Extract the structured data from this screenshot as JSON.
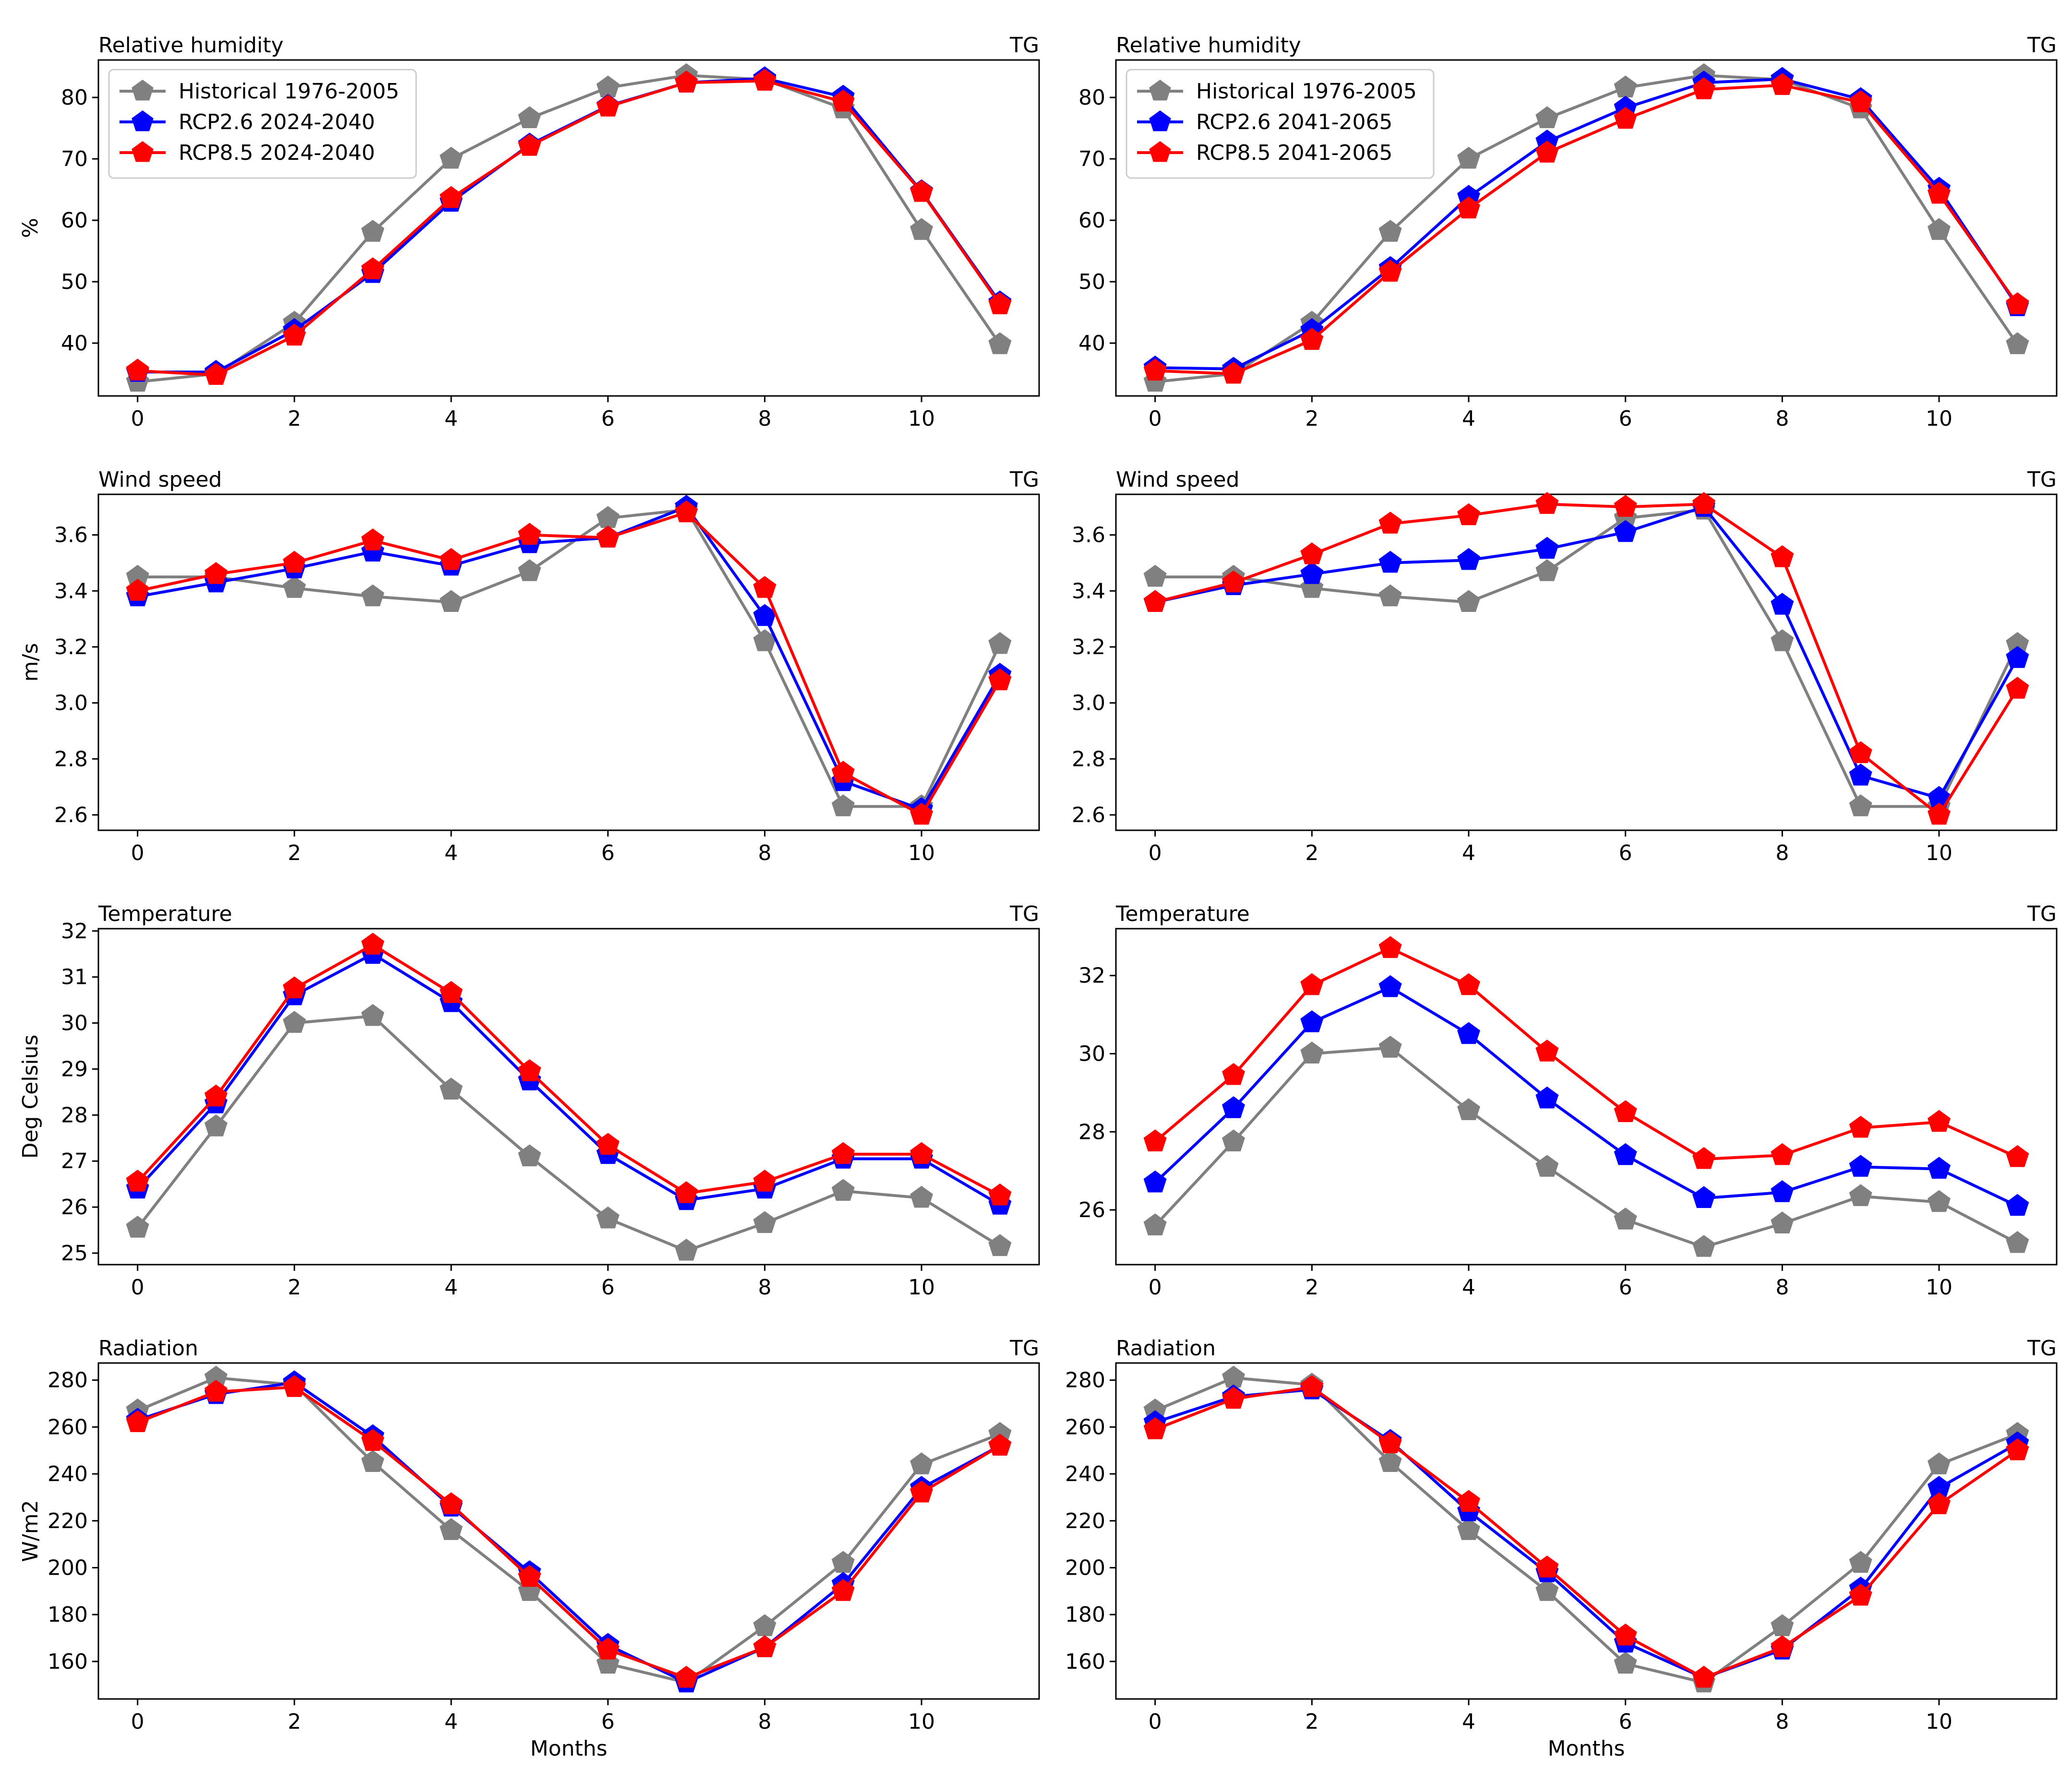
{
  "figure": {
    "xlabel": "Months",
    "station": "TG"
  },
  "legends": {
    "left": [
      "Historical 1976-2005",
      "RCP2.6 2024-2040",
      "RCP8.5 2024-2040"
    ],
    "right": [
      "Historical 1976-2005",
      "RCP2.6 2041-2065",
      "RCP8.5 2041-2065"
    ]
  },
  "colors": {
    "historical": "#808080",
    "rcp26": "#0000ff",
    "rcp85": "#ff0000"
  },
  "chart_data": [
    {
      "type": "line",
      "title": "Relative humidity",
      "corner_label": "TG",
      "xlabel": "",
      "ylabel": "%",
      "xlim": [
        -0.5,
        11.5
      ],
      "ylim": [
        31.4,
        86.1
      ],
      "xticks": [
        0,
        2,
        4,
        6,
        8,
        10
      ],
      "yticks": [
        40,
        50,
        60,
        70,
        80
      ],
      "tick_labels": [
        "40",
        "50",
        "60",
        "70",
        "80"
      ],
      "legend": "top-left",
      "x": [
        0,
        1,
        2,
        3,
        4,
        5,
        6,
        7,
        8,
        9,
        10,
        11
      ],
      "series": [
        {
          "name": "Historical 1976-2005",
          "color": "#808080",
          "values": [
            33.7,
            35.0,
            43.3,
            58.1,
            70.0,
            76.6,
            81.6,
            83.6,
            82.9,
            78.2,
            58.4,
            39.8
          ]
        },
        {
          "name": "RCP2.6 2024-2040",
          "color": "#0000ff",
          "values": [
            35.3,
            35.3,
            42.1,
            51.4,
            63.0,
            72.3,
            78.6,
            82.4,
            83.1,
            80.1,
            64.7,
            46.6
          ]
        },
        {
          "name": "RCP8.5 2024-2040",
          "color": "#ff0000",
          "values": [
            35.5,
            34.8,
            41.2,
            52.0,
            63.6,
            72.1,
            78.5,
            82.4,
            82.7,
            79.3,
            64.6,
            46.3
          ]
        }
      ]
    },
    {
      "type": "line",
      "title": "Relative humidity",
      "corner_label": "TG",
      "xlabel": "",
      "ylabel": "",
      "xlim": [
        -0.5,
        11.5
      ],
      "ylim": [
        31.4,
        86.1
      ],
      "xticks": [
        0,
        2,
        4,
        6,
        8,
        10
      ],
      "yticks": [
        40,
        50,
        60,
        70,
        80
      ],
      "tick_labels": [
        "40",
        "50",
        "60",
        "70",
        "80"
      ],
      "legend": "top-left",
      "x": [
        0,
        1,
        2,
        3,
        4,
        5,
        6,
        7,
        8,
        9,
        10,
        11
      ],
      "series": [
        {
          "name": "Historical 1976-2005",
          "color": "#808080",
          "values": [
            33.7,
            35.0,
            43.3,
            58.1,
            70.0,
            76.6,
            81.6,
            83.6,
            82.9,
            78.2,
            58.4,
            39.8
          ]
        },
        {
          "name": "RCP2.6 2041-2065",
          "color": "#0000ff",
          "values": [
            36.0,
            35.8,
            42.1,
            52.2,
            63.8,
            72.8,
            78.3,
            82.4,
            83.0,
            79.7,
            65.1,
            46.0
          ]
        },
        {
          "name": "RCP8.5 2041-2065",
          "color": "#ff0000",
          "values": [
            35.5,
            35.0,
            40.5,
            51.6,
            61.9,
            71.0,
            76.5,
            81.3,
            82.0,
            79.2,
            64.3,
            46.3
          ]
        }
      ]
    },
    {
      "type": "line",
      "title": "Wind speed",
      "corner_label": "TG",
      "xlabel": "",
      "ylabel": "m/s",
      "xlim": [
        -0.5,
        11.5
      ],
      "ylim": [
        2.545,
        3.745
      ],
      "xticks": [
        0,
        2,
        4,
        6,
        8,
        10
      ],
      "yticks": [
        2.6,
        2.8,
        3.0,
        3.2,
        3.4,
        3.6
      ],
      "tick_labels": [
        "2.6",
        "2.8",
        "3.0",
        "3.2",
        "3.4",
        "3.6"
      ],
      "legend": "none",
      "x": [
        0,
        1,
        2,
        3,
        4,
        5,
        6,
        7,
        8,
        9,
        10,
        11
      ],
      "series": [
        {
          "name": "Historical 1976-2005",
          "color": "#808080",
          "values": [
            3.45,
            3.45,
            3.41,
            3.38,
            3.36,
            3.47,
            3.66,
            3.69,
            3.22,
            2.63,
            2.63,
            3.21
          ]
        },
        {
          "name": "RCP2.6 2024-2040",
          "color": "#0000ff",
          "values": [
            3.38,
            3.43,
            3.48,
            3.54,
            3.49,
            3.57,
            3.59,
            3.7,
            3.31,
            2.72,
            2.62,
            3.1
          ]
        },
        {
          "name": "RCP8.5 2024-2040",
          "color": "#ff0000",
          "values": [
            3.4,
            3.46,
            3.5,
            3.58,
            3.51,
            3.6,
            3.59,
            3.68,
            3.41,
            2.75,
            2.6,
            3.08
          ]
        }
      ]
    },
    {
      "type": "line",
      "title": "Wind speed",
      "corner_label": "TG",
      "xlabel": "",
      "ylabel": "",
      "xlim": [
        -0.5,
        11.5
      ],
      "ylim": [
        2.545,
        3.745
      ],
      "xticks": [
        0,
        2,
        4,
        6,
        8,
        10
      ],
      "yticks": [
        2.6,
        2.8,
        3.0,
        3.2,
        3.4,
        3.6
      ],
      "tick_labels": [
        "2.6",
        "2.8",
        "3.0",
        "3.2",
        "3.4",
        "3.6"
      ],
      "legend": "none",
      "x": [
        0,
        1,
        2,
        3,
        4,
        5,
        6,
        7,
        8,
        9,
        10,
        11
      ],
      "series": [
        {
          "name": "Historical 1976-2005",
          "color": "#808080",
          "values": [
            3.45,
            3.45,
            3.41,
            3.38,
            3.36,
            3.47,
            3.66,
            3.69,
            3.22,
            2.63,
            2.63,
            3.21
          ]
        },
        {
          "name": "RCP2.6 2041-2065",
          "color": "#0000ff",
          "values": [
            3.36,
            3.42,
            3.46,
            3.5,
            3.51,
            3.55,
            3.61,
            3.7,
            3.35,
            2.74,
            2.66,
            3.16
          ]
        },
        {
          "name": "RCP8.5 2041-2065",
          "color": "#ff0000",
          "values": [
            3.36,
            3.43,
            3.53,
            3.64,
            3.67,
            3.71,
            3.7,
            3.71,
            3.52,
            2.82,
            2.6,
            3.05
          ]
        }
      ]
    },
    {
      "type": "line",
      "title": "Temperature",
      "corner_label": "TG",
      "xlabel": "",
      "ylabel": "Deg Celsius",
      "xlim": [
        -0.5,
        11.5
      ],
      "ylim": [
        24.75,
        32.05
      ],
      "xticks": [
        0,
        2,
        4,
        6,
        8,
        10
      ],
      "yticks": [
        25,
        26,
        27,
        28,
        29,
        30,
        31,
        32
      ],
      "tick_labels": [
        "25",
        "26",
        "27",
        "28",
        "29",
        "30",
        "31",
        "32"
      ],
      "legend": "none",
      "x": [
        0,
        1,
        2,
        3,
        4,
        5,
        6,
        7,
        8,
        9,
        10,
        11
      ],
      "series": [
        {
          "name": "Historical 1976-2005",
          "color": "#808080",
          "values": [
            25.55,
            27.75,
            30.0,
            30.15,
            28.55,
            27.1,
            25.75,
            25.05,
            25.65,
            26.35,
            26.2,
            25.15
          ]
        },
        {
          "name": "RCP2.6 2024-2040",
          "color": "#0000ff",
          "values": [
            26.4,
            28.25,
            30.6,
            31.5,
            30.45,
            28.75,
            27.15,
            26.15,
            26.4,
            27.05,
            27.05,
            26.05
          ]
        },
        {
          "name": "RCP8.5 2024-2040",
          "color": "#ff0000",
          "values": [
            26.55,
            28.4,
            30.75,
            31.7,
            30.65,
            28.95,
            27.35,
            26.3,
            26.55,
            27.15,
            27.15,
            26.25
          ]
        }
      ]
    },
    {
      "type": "line",
      "title": "Temperature",
      "corner_label": "TG",
      "xlabel": "",
      "ylabel": "",
      "xlim": [
        -0.5,
        11.5
      ],
      "ylim": [
        24.6,
        33.2
      ],
      "xticks": [
        0,
        2,
        4,
        6,
        8,
        10
      ],
      "yticks": [
        26,
        28,
        30,
        32
      ],
      "tick_labels": [
        "26",
        "28",
        "30",
        "32"
      ],
      "legend": "none",
      "x": [
        0,
        1,
        2,
        3,
        4,
        5,
        6,
        7,
        8,
        9,
        10,
        11
      ],
      "series": [
        {
          "name": "Historical 1976-2005",
          "color": "#808080",
          "values": [
            25.6,
            27.75,
            30.0,
            30.15,
            28.55,
            27.1,
            25.75,
            25.05,
            25.65,
            26.35,
            26.2,
            25.15
          ]
        },
        {
          "name": "RCP2.6 2041-2065",
          "color": "#0000ff",
          "values": [
            26.7,
            28.6,
            30.8,
            31.7,
            30.5,
            28.85,
            27.4,
            26.3,
            26.45,
            27.1,
            27.05,
            26.1
          ]
        },
        {
          "name": "RCP8.5 2041-2065",
          "color": "#ff0000",
          "values": [
            27.75,
            29.45,
            31.75,
            32.7,
            31.75,
            30.05,
            28.5,
            27.3,
            27.4,
            28.1,
            28.25,
            27.35
          ]
        }
      ]
    },
    {
      "type": "line",
      "title": "Radiation",
      "corner_label": "TG",
      "xlabel": "Months",
      "ylabel": "W/m2",
      "xlim": [
        -0.5,
        11.5
      ],
      "ylim": [
        144.0,
        287.3
      ],
      "xticks": [
        0,
        2,
        4,
        6,
        8,
        10
      ],
      "yticks": [
        160,
        180,
        200,
        220,
        240,
        260,
        280
      ],
      "tick_labels": [
        "160",
        "180",
        "200",
        "220",
        "240",
        "260",
        "280"
      ],
      "legend": "none",
      "x": [
        0,
        1,
        2,
        3,
        4,
        5,
        6,
        7,
        8,
        9,
        10,
        11
      ],
      "series": [
        {
          "name": "Historical 1976-2005",
          "color": "#808080",
          "values": [
            267,
            281,
            278,
            245,
            216,
            190,
            159,
            151,
            175,
            202,
            244,
            257
          ]
        },
        {
          "name": "RCP2.6 2024-2040",
          "color": "#0000ff",
          "values": [
            263,
            274,
            279,
            256,
            226,
            198,
            167,
            151,
            166,
            193,
            234,
            252
          ]
        },
        {
          "name": "RCP8.5 2024-2040",
          "color": "#ff0000",
          "values": [
            262,
            275,
            277,
            254,
            227,
            196,
            165,
            153,
            166,
            190,
            232,
            252
          ]
        }
      ]
    },
    {
      "type": "line",
      "title": "Radiation",
      "corner_label": "TG",
      "xlabel": "Months",
      "ylabel": "",
      "xlim": [
        -0.5,
        11.5
      ],
      "ylim": [
        144.0,
        287.3
      ],
      "xticks": [
        0,
        2,
        4,
        6,
        8,
        10
      ],
      "yticks": [
        160,
        180,
        200,
        220,
        240,
        260,
        280
      ],
      "tick_labels": [
        "160",
        "180",
        "200",
        "220",
        "240",
        "260",
        "280"
      ],
      "legend": "none",
      "x": [
        0,
        1,
        2,
        3,
        4,
        5,
        6,
        7,
        8,
        9,
        10,
        11
      ],
      "series": [
        {
          "name": "Historical 1976-2005",
          "color": "#808080",
          "values": [
            267,
            281,
            278,
            245,
            216,
            190,
            159,
            151,
            175,
            202,
            244,
            257
          ]
        },
        {
          "name": "RCP2.6 2041-2065",
          "color": "#0000ff",
          "values": [
            262,
            273,
            276,
            254,
            224,
            198,
            168,
            153,
            165,
            191,
            234,
            253
          ]
        },
        {
          "name": "RCP8.5 2041-2065",
          "color": "#ff0000",
          "values": [
            259,
            272,
            277,
            253,
            228,
            200,
            171,
            153,
            166,
            188,
            227,
            250
          ]
        }
      ]
    }
  ]
}
